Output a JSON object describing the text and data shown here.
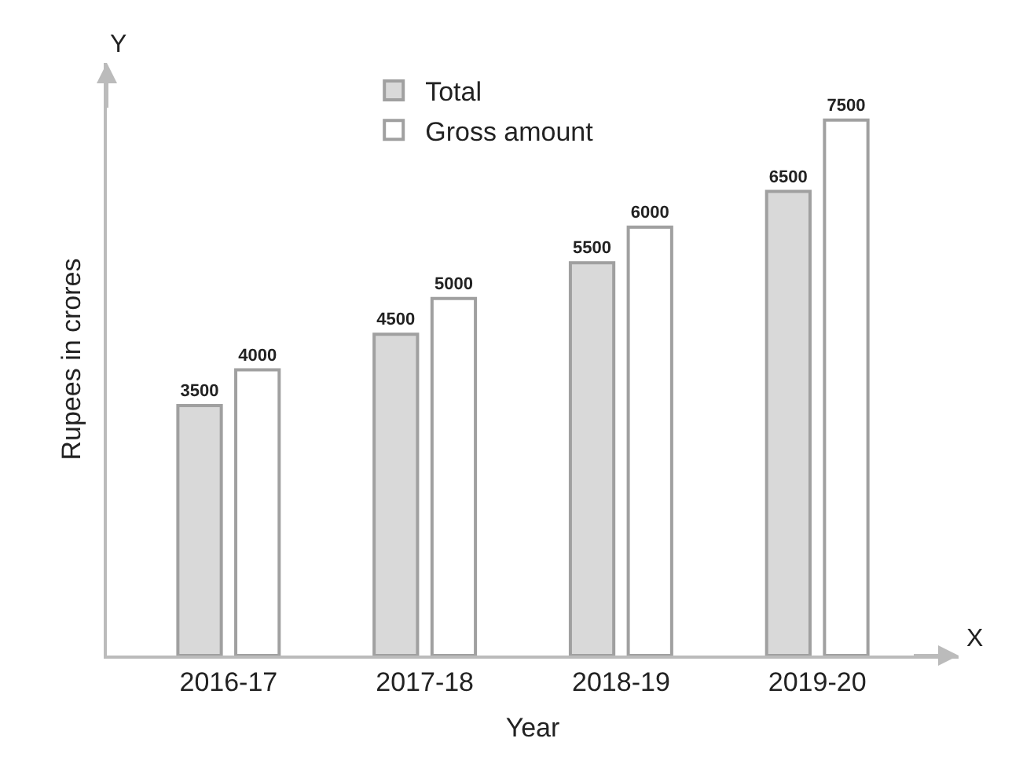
{
  "chart_data": {
    "type": "bar",
    "xlabel": "Year",
    "ylabel": "Rupees in crores",
    "categories": [
      "2016-17",
      "2017-18",
      "2018-19",
      "2019-20"
    ],
    "series": [
      {
        "name": "Total",
        "color": "#d9d9d9",
        "values": [
          3500,
          4500,
          5500,
          6500
        ]
      },
      {
        "name": "Gross amount",
        "color": "#ffffff",
        "values": [
          4000,
          5000,
          6000,
          7500
        ]
      }
    ],
    "ylim": [
      0,
      8300
    ],
    "tick_labels": "x",
    "data_labels": true,
    "grid": false,
    "legend": "top",
    "annotations": [
      "Y",
      "X"
    ]
  }
}
